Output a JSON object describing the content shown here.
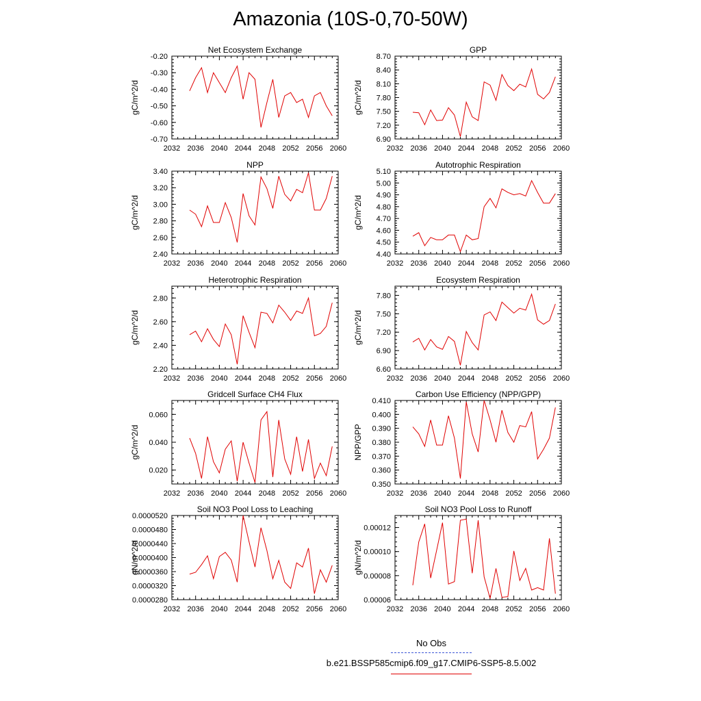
{
  "title": "Amazonia (10S-0,70-50W)",
  "legend": {
    "obs_label": "No Obs",
    "obs_color": "#3b54d6",
    "case_label": "b.e21.BSSP585cmip6.f09_g17.CMIP6-SSP5-8.5.002",
    "case_color": "#e00000"
  },
  "chart_data": [
    {
      "type": "line",
      "title": "Net Ecosystem Exchange",
      "ylabel": "gC/m^2/d",
      "xlim": [
        2032,
        2060
      ],
      "xticks": [
        "2032",
        "2036",
        "2040",
        "2044",
        "2048",
        "2052",
        "2056",
        "2060"
      ],
      "ylim": [
        -0.7,
        -0.2
      ],
      "yticks": [
        "-0.70",
        "-0.60",
        "-0.50",
        "-0.40",
        "-0.30",
        "-0.20"
      ],
      "x": [
        2035,
        2036,
        2037,
        2038,
        2039,
        2040,
        2041,
        2042,
        2043,
        2044,
        2045,
        2046,
        2047,
        2048,
        2049,
        2050,
        2051,
        2052,
        2053,
        2054,
        2055,
        2056,
        2057,
        2058,
        2059
      ],
      "values": [
        -0.41,
        -0.33,
        -0.27,
        -0.42,
        -0.3,
        -0.36,
        -0.42,
        -0.33,
        -0.26,
        -0.46,
        -0.3,
        -0.34,
        -0.63,
        -0.48,
        -0.34,
        -0.57,
        -0.44,
        -0.42,
        -0.48,
        -0.46,
        -0.57,
        -0.44,
        -0.42,
        -0.5,
        -0.56
      ]
    },
    {
      "type": "line",
      "title": "GPP",
      "ylabel": "gC/m^2/d",
      "xlim": [
        2032,
        2060
      ],
      "xticks": [
        "2032",
        "2036",
        "2040",
        "2044",
        "2048",
        "2052",
        "2056",
        "2060"
      ],
      "ylim": [
        6.9,
        8.7
      ],
      "yticks": [
        "6.90",
        "7.20",
        "7.50",
        "7.80",
        "8.10",
        "8.40",
        "8.70"
      ],
      "x": [
        2035,
        2036,
        2037,
        2038,
        2039,
        2040,
        2041,
        2042,
        2043,
        2044,
        2045,
        2046,
        2047,
        2048,
        2049,
        2050,
        2051,
        2052,
        2053,
        2054,
        2055,
        2056,
        2057,
        2058,
        2059
      ],
      "values": [
        7.48,
        7.47,
        7.21,
        7.53,
        7.3,
        7.31,
        7.58,
        7.42,
        6.95,
        7.7,
        7.38,
        7.3,
        8.14,
        8.07,
        7.74,
        8.3,
        8.06,
        7.95,
        8.09,
        8.03,
        8.42,
        7.87,
        7.77,
        7.91,
        8.25
      ]
    },
    {
      "type": "line",
      "title": "NPP",
      "ylabel": "gC/m^2/d",
      "xlim": [
        2032,
        2060
      ],
      "xticks": [
        "2032",
        "2036",
        "2040",
        "2044",
        "2048",
        "2052",
        "2056",
        "2060"
      ],
      "ylim": [
        2.4,
        3.4
      ],
      "yticks": [
        "2.40",
        "2.60",
        "2.80",
        "3.00",
        "3.20",
        "3.40"
      ],
      "x": [
        2035,
        2036,
        2037,
        2038,
        2039,
        2040,
        2041,
        2042,
        2043,
        2044,
        2045,
        2046,
        2047,
        2048,
        2049,
        2050,
        2051,
        2052,
        2053,
        2054,
        2055,
        2056,
        2057,
        2058,
        2059
      ],
      "values": [
        2.93,
        2.88,
        2.73,
        2.98,
        2.78,
        2.78,
        3.02,
        2.84,
        2.54,
        3.13,
        2.86,
        2.75,
        3.33,
        3.19,
        2.95,
        3.34,
        3.12,
        3.04,
        3.18,
        3.14,
        3.38,
        2.93,
        2.93,
        3.07,
        3.34
      ]
    },
    {
      "type": "line",
      "title": "Autotrophic Respiration",
      "ylabel": "gC/m^2/d",
      "xlim": [
        2032,
        2060
      ],
      "xticks": [
        "2032",
        "2036",
        "2040",
        "2044",
        "2048",
        "2052",
        "2056",
        "2060"
      ],
      "ylim": [
        4.4,
        5.1
      ],
      "yticks": [
        "4.40",
        "4.50",
        "4.60",
        "4.70",
        "4.80",
        "4.90",
        "5.00",
        "5.10"
      ],
      "x": [
        2035,
        2036,
        2037,
        2038,
        2039,
        2040,
        2041,
        2042,
        2043,
        2044,
        2045,
        2046,
        2047,
        2048,
        2049,
        2050,
        2051,
        2052,
        2053,
        2054,
        2055,
        2056,
        2057,
        2058,
        2059
      ],
      "values": [
        4.55,
        4.58,
        4.47,
        4.54,
        4.52,
        4.52,
        4.56,
        4.56,
        4.42,
        4.56,
        4.52,
        4.53,
        4.8,
        4.87,
        4.79,
        4.95,
        4.92,
        4.9,
        4.91,
        4.89,
        5.02,
        4.92,
        4.83,
        4.83,
        4.91
      ]
    },
    {
      "type": "line",
      "title": "Heterotrophic Respiration",
      "ylabel": "gC/m^2/d",
      "xlim": [
        2032,
        2060
      ],
      "xticks": [
        "2032",
        "2036",
        "2040",
        "2044",
        "2048",
        "2052",
        "2056",
        "2060"
      ],
      "ylim": [
        2.2,
        2.9
      ],
      "yticks": [
        "2.20",
        "2.40",
        "2.60",
        "2.80"
      ],
      "x": [
        2035,
        2036,
        2037,
        2038,
        2039,
        2040,
        2041,
        2042,
        2043,
        2044,
        2045,
        2046,
        2047,
        2048,
        2049,
        2050,
        2051,
        2052,
        2053,
        2054,
        2055,
        2056,
        2057,
        2058,
        2059
      ],
      "values": [
        2.49,
        2.52,
        2.43,
        2.54,
        2.45,
        2.39,
        2.58,
        2.49,
        2.24,
        2.65,
        2.51,
        2.38,
        2.68,
        2.67,
        2.59,
        2.74,
        2.68,
        2.61,
        2.69,
        2.67,
        2.8,
        2.48,
        2.5,
        2.56,
        2.76
      ]
    },
    {
      "type": "line",
      "title": "Ecosystem Respiration",
      "ylabel": "gC/m^2/d",
      "xlim": [
        2032,
        2060
      ],
      "xticks": [
        "2032",
        "2036",
        "2040",
        "2044",
        "2048",
        "2052",
        "2056",
        "2060"
      ],
      "ylim": [
        6.6,
        7.95
      ],
      "yticks": [
        "6.60",
        "6.90",
        "7.20",
        "7.50",
        "7.80"
      ],
      "x": [
        2035,
        2036,
        2037,
        2038,
        2039,
        2040,
        2041,
        2042,
        2043,
        2044,
        2045,
        2046,
        2047,
        2048,
        2049,
        2050,
        2051,
        2052,
        2053,
        2054,
        2055,
        2056,
        2057,
        2058,
        2059
      ],
      "values": [
        7.04,
        7.1,
        6.91,
        7.08,
        6.96,
        6.92,
        7.13,
        7.05,
        6.66,
        7.21,
        7.03,
        6.91,
        7.48,
        7.53,
        7.39,
        7.69,
        7.6,
        7.51,
        7.59,
        7.56,
        7.82,
        7.4,
        7.33,
        7.39,
        7.66
      ]
    },
    {
      "type": "line",
      "title": "Gridcell Surface CH4 Flux",
      "ylabel": "gC/m^2/d",
      "xlim": [
        2032,
        2060
      ],
      "xticks": [
        "2032",
        "2036",
        "2040",
        "2044",
        "2048",
        "2052",
        "2056",
        "2060"
      ],
      "ylim": [
        0.01,
        0.07
      ],
      "yticks": [
        "0.020",
        "0.040",
        "0.060"
      ],
      "x": [
        2035,
        2036,
        2037,
        2038,
        2039,
        2040,
        2041,
        2042,
        2043,
        2044,
        2045,
        2046,
        2047,
        2048,
        2049,
        2050,
        2051,
        2052,
        2053,
        2054,
        2055,
        2056,
        2057,
        2058,
        2059
      ],
      "values": [
        0.043,
        0.032,
        0.014,
        0.044,
        0.026,
        0.018,
        0.035,
        0.041,
        0.012,
        0.04,
        0.025,
        0.011,
        0.056,
        0.062,
        0.015,
        0.056,
        0.028,
        0.017,
        0.044,
        0.019,
        0.042,
        0.014,
        0.025,
        0.016,
        0.037
      ]
    },
    {
      "type": "line",
      "title": "Carbon Use Efficiency (NPP/GPP)",
      "ylabel": "NPP/GPP",
      "xlim": [
        2032,
        2060
      ],
      "xticks": [
        "2032",
        "2036",
        "2040",
        "2044",
        "2048",
        "2052",
        "2056",
        "2060"
      ],
      "ylim": [
        0.35,
        0.41
      ],
      "yticks": [
        "0.350",
        "0.360",
        "0.370",
        "0.380",
        "0.390",
        "0.400",
        "0.410"
      ],
      "x": [
        2035,
        2036,
        2037,
        2038,
        2039,
        2040,
        2041,
        2042,
        2043,
        2044,
        2045,
        2046,
        2047,
        2048,
        2049,
        2050,
        2051,
        2052,
        2053,
        2054,
        2055,
        2056,
        2057,
        2058,
        2059
      ],
      "values": [
        0.391,
        0.386,
        0.377,
        0.396,
        0.378,
        0.378,
        0.399,
        0.383,
        0.354,
        0.409,
        0.386,
        0.373,
        0.41,
        0.396,
        0.38,
        0.403,
        0.387,
        0.38,
        0.392,
        0.391,
        0.402,
        0.368,
        0.375,
        0.383,
        0.405
      ]
    },
    {
      "type": "line",
      "title": "Soil NO3 Pool Loss to Leaching",
      "ylabel": "gN/m^2/d",
      "xlim": [
        2032,
        2060
      ],
      "xticks": [
        "2032",
        "2036",
        "2040",
        "2044",
        "2048",
        "2052",
        "2056",
        "2060"
      ],
      "ylim": [
        2.8e-05,
        5.2e-05
      ],
      "yticks": [
        "0.0000280",
        "0.0000320",
        "0.0000360",
        "0.0000400",
        "0.0000440",
        "0.0000480",
        "0.0000520"
      ],
      "x": [
        2035,
        2036,
        2037,
        2038,
        2039,
        2040,
        2041,
        2042,
        2043,
        2044,
        2045,
        2046,
        2047,
        2048,
        2049,
        2050,
        2051,
        2052,
        2053,
        2054,
        2055,
        2056,
        2057,
        2058,
        2059
      ],
      "values": [
        3.53e-05,
        3.58e-05,
        3.8e-05,
        4.05e-05,
        3.4e-05,
        4.03e-05,
        4.15e-05,
        3.93e-05,
        3.3e-05,
        5.2e-05,
        4.45e-05,
        3.73e-05,
        4.85e-05,
        4.2e-05,
        3.4e-05,
        3.92e-05,
        3.3e-05,
        3.12e-05,
        3.85e-05,
        3.73e-05,
        4.27e-05,
        2.97e-05,
        3.65e-05,
        3.3e-05,
        3.78e-05
      ]
    },
    {
      "type": "line",
      "title": "Soil NO3 Pool Loss to Runoff",
      "ylabel": "gN/m^2/d",
      "xlim": [
        2032,
        2060
      ],
      "xticks": [
        "2032",
        "2036",
        "2040",
        "2044",
        "2048",
        "2052",
        "2056",
        "2060"
      ],
      "ylim": [
        6e-05,
        0.00013
      ],
      "yticks": [
        "0.00006",
        "0.00008",
        "0.00010",
        "0.00012"
      ],
      "x": [
        2035,
        2036,
        2037,
        2038,
        2039,
        2040,
        2041,
        2042,
        2043,
        2044,
        2045,
        2046,
        2047,
        2048,
        2049,
        2050,
        2051,
        2052,
        2053,
        2054,
        2055,
        2056,
        2057,
        2058,
        2059
      ],
      "values": [
        7.2e-05,
        0.000108,
        0.000123,
        7.8e-05,
        0.000101,
        0.000124,
        7.3e-05,
        7.5e-05,
        0.000126,
        0.000127,
        8.2e-05,
        0.000126,
        7.9e-05,
        6.1e-05,
        8.6e-05,
        6.2e-05,
        6.25e-05,
        0.0001005,
        7.6e-05,
        8.6e-05,
        6.8e-05,
        7e-05,
        6.8e-05,
        0.000111,
        6.5e-05
      ]
    }
  ]
}
